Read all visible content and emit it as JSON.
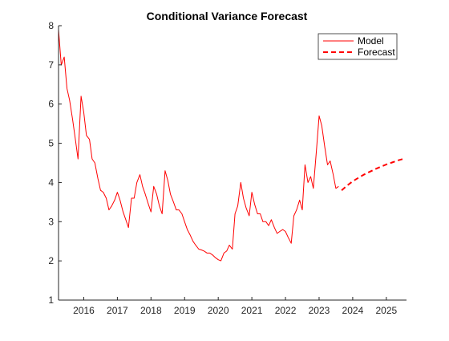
{
  "chart_data": {
    "type": "line",
    "title": "Conditional Variance Forecast",
    "xlabel": "",
    "ylabel": "",
    "xlim": [
      2015.25,
      2025.6
    ],
    "ylim": [
      1,
      8
    ],
    "x_ticks": [
      2016,
      2017,
      2018,
      2019,
      2020,
      2021,
      2022,
      2023,
      2024,
      2025
    ],
    "y_ticks": [
      1,
      2,
      3,
      4,
      5,
      6,
      7,
      8
    ],
    "grid": false,
    "legend_position": "top-right",
    "series": [
      {
        "name": "Model",
        "color": "#ff0000",
        "style": "solid",
        "x": [
          2015.25,
          2015.33,
          2015.42,
          2015.5,
          2015.58,
          2015.67,
          2015.75,
          2015.83,
          2015.92,
          2016.0,
          2016.08,
          2016.17,
          2016.25,
          2016.33,
          2016.42,
          2016.5,
          2016.58,
          2016.67,
          2016.75,
          2016.83,
          2016.92,
          2017.0,
          2017.08,
          2017.17,
          2017.25,
          2017.33,
          2017.42,
          2017.5,
          2017.58,
          2017.67,
          2017.75,
          2017.83,
          2017.92,
          2018.0,
          2018.08,
          2018.17,
          2018.25,
          2018.33,
          2018.42,
          2018.5,
          2018.58,
          2018.67,
          2018.75,
          2018.83,
          2018.92,
          2019.0,
          2019.08,
          2019.17,
          2019.25,
          2019.33,
          2019.42,
          2019.5,
          2019.58,
          2019.67,
          2019.75,
          2019.83,
          2019.92,
          2020.0,
          2020.08,
          2020.17,
          2020.25,
          2020.33,
          2020.42,
          2020.5,
          2020.58,
          2020.67,
          2020.75,
          2020.83,
          2020.92,
          2021.0,
          2021.08,
          2021.17,
          2021.25,
          2021.33,
          2021.42,
          2021.5,
          2021.58,
          2021.67,
          2021.75,
          2021.83,
          2021.92,
          2022.0,
          2022.08,
          2022.17,
          2022.25,
          2022.33,
          2022.42,
          2022.5,
          2022.58,
          2022.67,
          2022.75,
          2022.83,
          2022.92,
          2023.0,
          2023.08,
          2023.17,
          2023.25,
          2023.33,
          2023.42,
          2023.5,
          2023.58
        ],
        "values": [
          7.9,
          7.0,
          7.2,
          6.4,
          6.1,
          5.6,
          5.1,
          4.6,
          6.2,
          5.8,
          5.2,
          5.1,
          4.6,
          4.5,
          4.1,
          3.8,
          3.75,
          3.6,
          3.3,
          3.4,
          3.55,
          3.75,
          3.55,
          3.25,
          3.05,
          2.85,
          3.6,
          3.6,
          4.0,
          4.2,
          3.9,
          3.7,
          3.45,
          3.25,
          3.9,
          3.7,
          3.4,
          3.2,
          4.3,
          4.05,
          3.7,
          3.5,
          3.3,
          3.3,
          3.2,
          3.0,
          2.8,
          2.65,
          2.5,
          2.4,
          2.3,
          2.28,
          2.25,
          2.2,
          2.2,
          2.15,
          2.08,
          2.03,
          2.0,
          2.2,
          2.25,
          2.4,
          2.3,
          3.2,
          3.4,
          4.0,
          3.6,
          3.35,
          3.15,
          3.75,
          3.45,
          3.2,
          3.2,
          3.0,
          3.0,
          2.9,
          3.05,
          2.85,
          2.7,
          2.75,
          2.8,
          2.75,
          2.6,
          2.45,
          3.15,
          3.3,
          3.55,
          3.3,
          4.45,
          4.0,
          4.15,
          3.85,
          4.8,
          5.7,
          5.45,
          4.9,
          4.45,
          4.55,
          4.2,
          3.85,
          3.9
        ]
      },
      {
        "name": "Forecast",
        "color": "#ff0000",
        "style": "dashed",
        "x": [
          2023.67,
          2023.83,
          2024.0,
          2024.17,
          2024.33,
          2024.5,
          2024.67,
          2024.83,
          2025.0,
          2025.17,
          2025.33,
          2025.5
        ],
        "values": [
          3.8,
          3.92,
          4.03,
          4.12,
          4.2,
          4.27,
          4.34,
          4.4,
          4.46,
          4.51,
          4.56,
          4.6
        ]
      }
    ]
  }
}
